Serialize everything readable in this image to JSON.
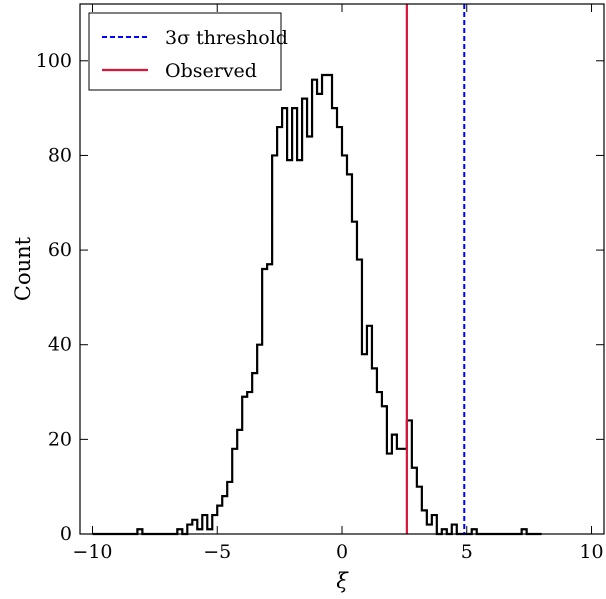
{
  "chart_data": {
    "type": "histogram",
    "xlabel": "ξ",
    "ylabel": "Count",
    "xlim": [
      -10.5,
      10.5
    ],
    "ylim": [
      0,
      112
    ],
    "xticks": [
      -10,
      -5,
      0,
      5,
      10
    ],
    "xtick_labels": [
      "−10",
      "−5",
      "0",
      "5",
      "10"
    ],
    "yticks": [
      0,
      20,
      40,
      60,
      80,
      100
    ],
    "ytick_labels": [
      "0",
      "20",
      "40",
      "60",
      "80",
      "100"
    ],
    "grid": false,
    "legend_position": "top-left",
    "bin_edges_start": -10.0,
    "bin_width": 0.2,
    "counts": [
      0,
      0,
      0,
      0,
      0,
      0,
      0,
      0,
      0,
      1,
      0,
      0,
      0,
      0,
      0,
      0,
      0,
      1,
      0,
      2,
      3,
      1,
      4,
      1,
      4,
      6,
      8,
      11,
      18,
      22,
      29,
      30,
      34,
      40,
      56,
      57,
      80,
      86,
      90,
      79,
      90,
      79,
      92,
      84,
      96,
      93,
      97,
      97,
      90,
      86,
      80,
      76,
      66,
      58,
      38,
      44,
      35,
      30,
      27,
      17,
      21,
      18,
      18,
      24,
      14,
      10,
      5,
      2,
      4,
      0,
      1,
      0,
      2,
      0,
      0,
      0,
      1,
      0,
      0,
      0,
      0,
      0,
      0,
      0,
      0,
      0,
      1,
      0,
      0,
      0
    ],
    "series": [
      {
        "name": "3σ threshold",
        "type": "vline",
        "x": 4.9,
        "color": "#0000ff",
        "style": "dashed"
      },
      {
        "name": "Observed",
        "type": "vline",
        "x": 2.6,
        "color": "#dc143c",
        "style": "solid"
      }
    ],
    "legend": [
      {
        "label": "3σ threshold",
        "color": "#0000ff",
        "style": "dashed"
      },
      {
        "label": "Observed",
        "color": "#dc143c",
        "style": "solid"
      }
    ]
  }
}
